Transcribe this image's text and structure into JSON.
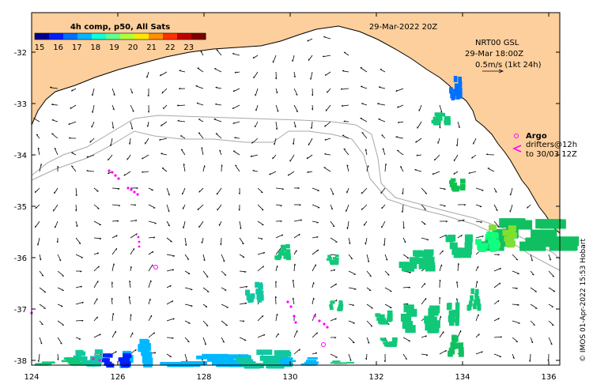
{
  "header": {
    "colorbar_title": "4h comp, p50, All Sats",
    "date_label": "29-Mar-2022 20Z"
  },
  "colorbar": {
    "ticks": [
      "15",
      "16",
      "17",
      "18",
      "19",
      "20",
      "21",
      "22",
      "23"
    ],
    "colors": [
      "#00008f",
      "#0020ff",
      "#0070ff",
      "#00b8ff",
      "#10ffd8",
      "#60ff90",
      "#b0ff40",
      "#ffe800",
      "#ff9000",
      "#ff3000",
      "#c00000",
      "#800000"
    ]
  },
  "legend": {
    "current_title": "NRT00 GSL",
    "current_time": "29-Mar 18:00Z",
    "current_scale": "0.5m/s (1kt 24h)",
    "argo_label": "Argo",
    "drifters_line1": "drifters@12h",
    "drifters_line2": "to 30/03 12Z"
  },
  "axes": {
    "x_ticks": [
      "124",
      "126",
      "128",
      "130",
      "132",
      "134",
      "136"
    ],
    "y_ticks": [
      "-32",
      "-33",
      "-34",
      "-35",
      "-36",
      "-37",
      "-38"
    ]
  },
  "credit": "© IMOS 01-Apr-2022 15:53 Hobart",
  "colors": {
    "land": "#fdcf9c",
    "coast": "#000000",
    "isobath": "#a8a8a8",
    "argo": "#ff00ff",
    "drifter": "#ff00ff"
  }
}
